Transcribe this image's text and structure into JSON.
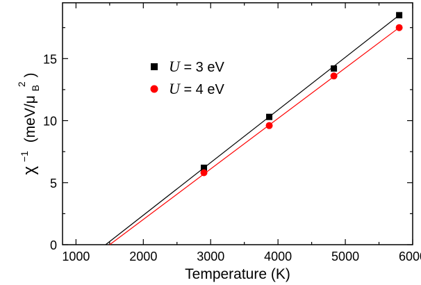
{
  "chart_data": {
    "type": "scatter",
    "xlabel": "Temperature (K)",
    "ylabel": {
      "chi": "χ",
      "exponent": "−1",
      "units_open": "(meV/μ",
      "units_sub": "B",
      "units_sup": "2",
      "units_close": ")"
    },
    "xlim": [
      800,
      6000
    ],
    "ylim": [
      0,
      19.5
    ],
    "x_ticks": [
      1000,
      2000,
      3000,
      4000,
      5000,
      6000
    ],
    "y_ticks": [
      0,
      5,
      10,
      15
    ],
    "grid": false,
    "legend_position": "upper-left",
    "series": [
      {
        "name": "U = 3 eV",
        "legend_var": "U",
        "legend_rest": " = 3 eV",
        "marker": "square",
        "color": "#000000",
        "x": [
          2900,
          3870,
          4830,
          5800
        ],
        "y": [
          6.2,
          10.3,
          14.2,
          18.5
        ],
        "fit_x": [
          1440,
          5800
        ],
        "fit_y": [
          0,
          18.5
        ]
      },
      {
        "name": "U = 4 eV",
        "legend_var": "U",
        "legend_rest": " = 4 eV",
        "marker": "circle",
        "color": "#ff0000",
        "x": [
          2900,
          3870,
          4830,
          5800
        ],
        "y": [
          5.8,
          9.6,
          13.6,
          17.5
        ],
        "fit_x": [
          1500,
          5800
        ],
        "fit_y": [
          0,
          17.5
        ]
      }
    ]
  }
}
